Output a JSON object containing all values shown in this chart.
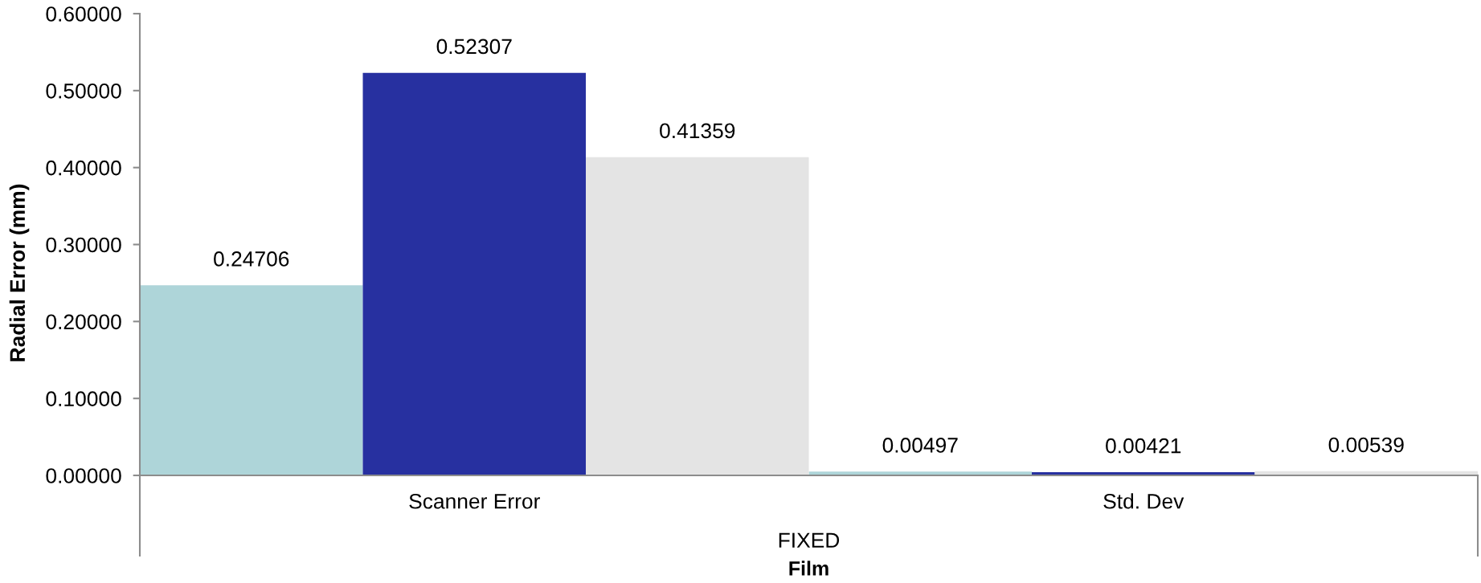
{
  "chart_data": {
    "type": "bar",
    "ylabel": "Radial Error (mm)",
    "xlabel": "Film",
    "annotations": [
      "FIXED"
    ],
    "categories": [
      "Scanner Error",
      "Std. Dev"
    ],
    "series": [
      {
        "color": "#aed5d9",
        "values": [
          0.24706,
          0.00497
        ]
      },
      {
        "color": "#2730a0",
        "values": [
          0.52307,
          0.00421
        ]
      },
      {
        "color": "#e4e4e4",
        "values": [
          0.41359,
          0.00539
        ]
      }
    ],
    "ylim": [
      0,
      0.6
    ],
    "yticks": [
      {
        "value": 0,
        "label": "0.00000"
      },
      {
        "value": 0.1,
        "label": "0.10000"
      },
      {
        "value": 0.2,
        "label": "0.20000"
      },
      {
        "value": 0.3,
        "label": "0.30000"
      },
      {
        "value": 0.4,
        "label": "0.40000"
      },
      {
        "value": 0.5,
        "label": "0.50000"
      },
      {
        "value": 0.6,
        "label": "0.60000"
      }
    ],
    "data_labels": true,
    "grid": false
  }
}
